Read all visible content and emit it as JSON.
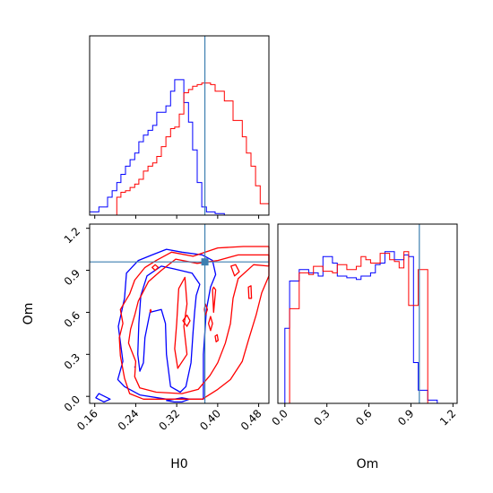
{
  "chart_data": [
    {
      "panel": "hist-H0",
      "type": "histogram",
      "xlabel": "",
      "ylabel": "",
      "xlim": [
        0.15,
        0.5
      ],
      "bins": [
        0.15,
        0.159,
        0.168,
        0.176,
        0.185,
        0.194,
        0.203,
        0.211,
        0.22,
        0.229,
        0.238,
        0.246,
        0.255,
        0.264,
        0.273,
        0.281,
        0.29,
        0.299,
        0.308,
        0.316,
        0.325,
        0.334,
        0.343,
        0.351,
        0.36,
        0.369,
        0.378,
        0.386,
        0.395,
        0.404,
        0.413,
        0.421,
        0.43,
        0.439,
        0.448,
        0.456,
        0.465,
        0.474,
        0.483,
        0.491,
        0.5
      ],
      "series": [
        {
          "color": "#0000ff",
          "values": [
            0.02,
            0.02,
            0.05,
            0.05,
            0.11,
            0.15,
            0.2,
            0.25,
            0.3,
            0.34,
            0.38,
            0.45,
            0.49,
            0.52,
            0.55,
            0.63,
            0.63,
            0.67,
            0.76,
            0.83,
            0.83,
            0.69,
            0.57,
            0.4,
            0.2,
            0.05,
            0.02,
            0.02,
            0.01,
            0.01,
            0,
            0,
            0,
            0,
            0,
            0,
            0,
            0,
            0,
            0
          ]
        },
        {
          "color": "#ff0000",
          "values": [
            0,
            0,
            0,
            0,
            0,
            0,
            0.11,
            0.14,
            0.15,
            0.17,
            0.19,
            0.22,
            0.27,
            0.3,
            0.32,
            0.36,
            0.42,
            0.48,
            0.53,
            0.54,
            0.62,
            0.75,
            0.77,
            0.79,
            0.8,
            0.81,
            0.81,
            0.8,
            0.76,
            0.76,
            0.7,
            0.7,
            0.58,
            0.58,
            0.48,
            0.38,
            0.3,
            0.18,
            0.07,
            0.07
          ]
        }
      ],
      "truth": 0.375
    },
    {
      "panel": "contour-H0-Om",
      "type": "contour",
      "xlabel": "H0",
      "ylabel": "Om",
      "xlim": [
        0.15,
        0.5
      ],
      "ylim": [
        -0.05,
        1.23
      ],
      "xticks": [
        "0.16",
        "0.24",
        "0.32",
        "0.40",
        "0.48"
      ],
      "yticks": [
        "0.0",
        "0.3",
        "0.6",
        "0.9",
        "1.2"
      ],
      "truth": {
        "x": 0.375,
        "y": 0.96
      },
      "series": [
        {
          "color": "#0000ff",
          "contours": [
            [
              [
                0.272,
                1.01
              ],
              [
                0.3,
                1.05
              ],
              [
                0.33,
                1.03
              ],
              [
                0.37,
                1.01
              ],
              [
                0.39,
                0.97
              ],
              [
                0.396,
                0.87
              ],
              [
                0.386,
                0.78
              ],
              [
                0.378,
                0.62
              ],
              [
                0.372,
                0.3
              ],
              [
                0.372,
                -0.02
              ],
              [
                0.34,
                -0.02
              ],
              [
                0.3,
                -0.02
              ],
              [
                0.248,
                0.01
              ],
              [
                0.218,
                0.07
              ],
              [
                0.205,
                0.12
              ],
              [
                0.215,
                0.25
              ],
              [
                0.206,
                0.5
              ],
              [
                0.218,
                0.7
              ],
              [
                0.222,
                0.88
              ],
              [
                0.245,
                0.97
              ],
              [
                0.272,
                1.01
              ]
            ],
            [
              [
                0.262,
                0.86
              ],
              [
                0.29,
                0.93
              ],
              [
                0.315,
                0.91
              ],
              [
                0.35,
                0.88
              ],
              [
                0.365,
                0.8
              ],
              [
                0.358,
                0.72
              ],
              [
                0.355,
                0.6
              ],
              [
                0.352,
                0.46
              ],
              [
                0.348,
                0.24
              ],
              [
                0.338,
                0.07
              ],
              [
                0.327,
                0.03
              ],
              [
                0.308,
                0.07
              ],
              [
                0.3,
                0.3
              ],
              [
                0.298,
                0.52
              ],
              [
                0.29,
                0.62
              ],
              [
                0.268,
                0.6
              ],
              [
                0.258,
                0.42
              ],
              [
                0.255,
                0.24
              ],
              [
                0.248,
                0.18
              ],
              [
                0.244,
                0.3
              ],
              [
                0.246,
                0.52
              ],
              [
                0.25,
                0.72
              ],
              [
                0.262,
                0.86
              ]
            ],
            [
              [
                0.168,
                0.02
              ],
              [
                0.19,
                -0.02
              ],
              [
                0.178,
                -0.04
              ],
              [
                0.162,
                -0.01
              ],
              [
                0.168,
                0.02
              ]
            ],
            [
              [
                0.3,
                -0.03
              ],
              [
                0.315,
                -0.04
              ],
              [
                0.33,
                -0.04
              ],
              [
                0.345,
                -0.02
              ],
              [
                0.33,
                -0.01
              ],
              [
                0.3,
                -0.03
              ]
            ],
            [
              [
                0.238,
                0.21
              ],
              [
                0.239,
                0.21
              ]
            ]
          ]
        },
        {
          "color": "#ff0000",
          "contours": [
            [
              [
                0.31,
                1.03
              ],
              [
                0.352,
                1.0
              ],
              [
                0.4,
                1.06
              ],
              [
                0.45,
                1.07
              ],
              [
                0.5,
                1.07
              ],
              [
                0.5,
                0.86
              ],
              [
                0.486,
                0.74
              ],
              [
                0.475,
                0.58
              ],
              [
                0.46,
                0.4
              ],
              [
                0.448,
                0.25
              ],
              [
                0.425,
                0.12
              ],
              [
                0.4,
                0.05
              ],
              [
                0.37,
                -0.02
              ],
              [
                0.33,
                -0.02
              ],
              [
                0.3,
                -0.02
              ],
              [
                0.255,
                -0.02
              ],
              [
                0.228,
                0.02
              ],
              [
                0.218,
                0.13
              ],
              [
                0.21,
                0.29
              ],
              [
                0.208,
                0.42
              ],
              [
                0.215,
                0.52
              ],
              [
                0.21,
                0.62
              ],
              [
                0.228,
                0.73
              ],
              [
                0.238,
                0.83
              ],
              [
                0.258,
                0.92
              ],
              [
                0.28,
                0.97
              ],
              [
                0.31,
                1.03
              ]
            ],
            [
              [
                0.318,
                0.98
              ],
              [
                0.36,
                0.95
              ],
              [
                0.4,
                0.97
              ],
              [
                0.44,
                1.01
              ],
              [
                0.5,
                1.01
              ],
              [
                0.5,
                0.93
              ],
              [
                0.47,
                0.94
              ],
              [
                0.44,
                0.84
              ],
              [
                0.43,
                0.7
              ],
              [
                0.425,
                0.52
              ],
              [
                0.415,
                0.38
              ],
              [
                0.4,
                0.24
              ],
              [
                0.385,
                0.15
              ],
              [
                0.362,
                0.05
              ],
              [
                0.33,
                0.02
              ],
              [
                0.28,
                0.03
              ],
              [
                0.248,
                0.06
              ],
              [
                0.238,
                0.14
              ],
              [
                0.24,
                0.25
              ],
              [
                0.226,
                0.38
              ],
              [
                0.23,
                0.48
              ],
              [
                0.238,
                0.58
              ],
              [
                0.245,
                0.68
              ],
              [
                0.265,
                0.82
              ],
              [
                0.29,
                0.9
              ],
              [
                0.318,
                0.98
              ]
            ],
            [
              [
                0.324,
                0.77
              ],
              [
                0.336,
                0.85
              ],
              [
                0.34,
                0.66
              ],
              [
                0.334,
                0.5
              ],
              [
                0.34,
                0.3
              ],
              [
                0.322,
                0.2
              ],
              [
                0.316,
                0.34
              ],
              [
                0.32,
                0.52
              ],
              [
                0.324,
                0.77
              ]
            ],
            [
              [
                0.426,
                0.93
              ],
              [
                0.435,
                0.94
              ],
              [
                0.442,
                0.89
              ],
              [
                0.433,
                0.86
              ],
              [
                0.426,
                0.93
              ]
            ],
            [
              [
                0.272,
                0.92
              ],
              [
                0.278,
                0.94
              ],
              [
                0.284,
                0.92
              ],
              [
                0.278,
                0.9
              ],
              [
                0.272,
                0.92
              ]
            ],
            [
              [
                0.332,
                0.54
              ],
              [
                0.34,
                0.58
              ],
              [
                0.346,
                0.54
              ],
              [
                0.34,
                0.5
              ],
              [
                0.332,
                0.54
              ]
            ],
            [
              [
                0.382,
                0.52
              ],
              [
                0.386,
                0.57
              ],
              [
                0.39,
                0.52
              ],
              [
                0.386,
                0.47
              ],
              [
                0.382,
                0.52
              ]
            ],
            [
              [
                0.374,
                0.62
              ],
              [
                0.376,
                0.66
              ],
              [
                0.38,
                0.62
              ],
              [
                0.376,
                0.58
              ],
              [
                0.374,
                0.62
              ]
            ],
            [
              [
                0.39,
                0.76
              ],
              [
                0.392,
                0.6
              ],
              [
                0.396,
                0.76
              ],
              [
                0.392,
                0.78
              ],
              [
                0.39,
                0.76
              ]
            ],
            [
              [
                0.395,
                0.43
              ],
              [
                0.399,
                0.44
              ],
              [
                0.401,
                0.4
              ],
              [
                0.397,
                0.39
              ],
              [
                0.395,
                0.43
              ]
            ],
            [
              [
                0.46,
                0.78
              ],
              [
                0.465,
                0.79
              ],
              [
                0.466,
                0.7
              ],
              [
                0.461,
                0.7
              ],
              [
                0.46,
                0.78
              ]
            ],
            [
              [
                0.268,
                0.61
              ],
              [
                0.269,
                0.62
              ],
              [
                0.27,
                0.61
              ],
              [
                0.269,
                0.6
              ],
              [
                0.268,
                0.61
              ]
            ]
          ]
        }
      ]
    },
    {
      "panel": "hist-Om",
      "type": "histogram",
      "xlabel": "Om",
      "ylabel": "",
      "xlim": [
        -0.05,
        1.23
      ],
      "xticks": [
        "0.0",
        "0.3",
        "0.6",
        "0.9",
        "1.2"
      ],
      "bins": [
        0.0,
        0.034,
        0.068,
        0.102,
        0.136,
        0.17,
        0.204,
        0.238,
        0.272,
        0.306,
        0.34,
        0.374,
        0.408,
        0.442,
        0.476,
        0.51,
        0.544,
        0.578,
        0.612,
        0.646,
        0.68,
        0.714,
        0.748,
        0.782,
        0.816,
        0.85,
        0.884,
        0.918,
        0.952,
        0.986,
        1.02,
        1.054,
        1.088,
        1.122,
        1.156
      ],
      "series": [
        {
          "color": "#0000ff",
          "values": [
            0.46,
            0.75,
            0.75,
            0.82,
            0.82,
            0.8,
            0.8,
            0.78,
            0.9,
            0.9,
            0.86,
            0.78,
            0.78,
            0.77,
            0.77,
            0.76,
            0.78,
            0.78,
            0.8,
            0.85,
            0.86,
            0.93,
            0.93,
            0.88,
            0.88,
            0.91,
            0.9,
            0.25,
            0.08,
            0.08,
            0.02,
            0.02,
            0,
            0
          ]
        },
        {
          "color": "#ff0000",
          "values": [
            0,
            0.58,
            0.58,
            0.8,
            0.8,
            0.79,
            0.84,
            0.84,
            0.81,
            0.81,
            0.8,
            0.85,
            0.85,
            0.82,
            0.82,
            0.84,
            0.9,
            0.88,
            0.86,
            0.86,
            0.92,
            0.92,
            0.88,
            0.87,
            0.83,
            0.93,
            0.6,
            0.6,
            0.82,
            0.82,
            0,
            0,
            0,
            0
          ]
        }
      ],
      "truth": 0.96
    }
  ]
}
